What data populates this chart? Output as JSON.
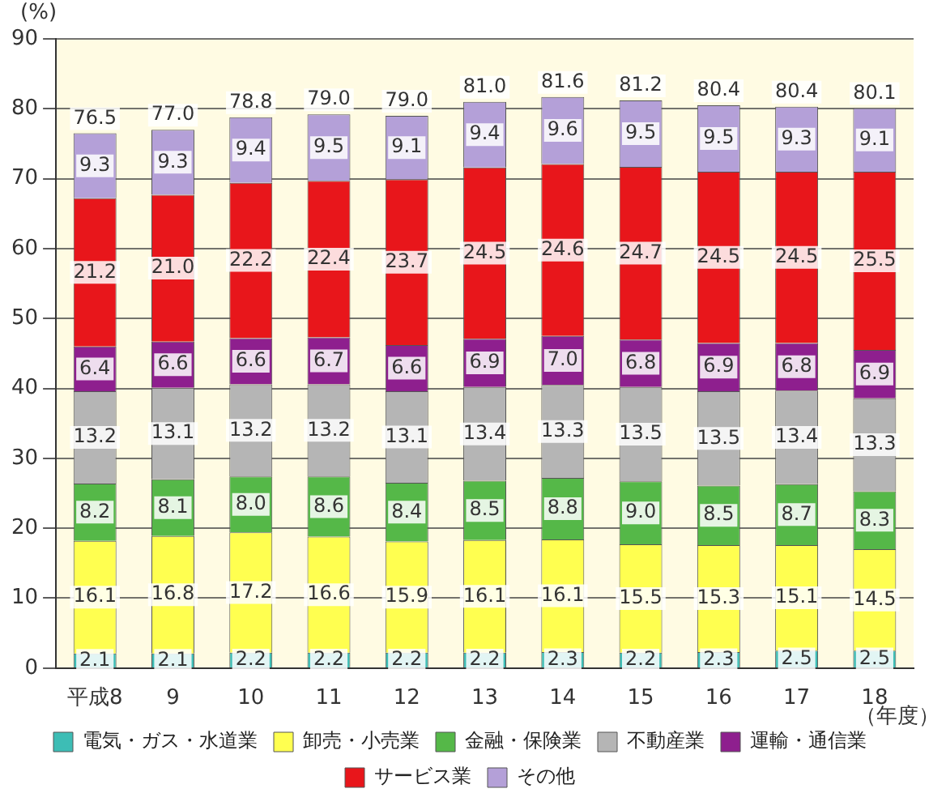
{
  "chart_data": {
    "type": "bar",
    "stacked": true,
    "xlabel": "（年度）",
    "ylabel": "(%)",
    "categories": [
      "平成8",
      "9",
      "10",
      "11",
      "12",
      "13",
      "14",
      "15",
      "16",
      "17",
      "18"
    ],
    "ylim": [
      0,
      90
    ],
    "yticks": [
      0,
      10,
      20,
      30,
      40,
      50,
      60,
      70,
      80,
      90
    ],
    "grid": "y",
    "legend": "bottom",
    "totals": [
      "76.5",
      "77.0",
      "78.8",
      "79.0",
      "79.0",
      "81.0",
      "81.6",
      "81.2",
      "80.4",
      "80.4",
      "80.1"
    ],
    "series": [
      {
        "name": "電気・ガス・水道業",
        "color": "#3dbdb5",
        "values": [
          2.1,
          2.1,
          2.2,
          2.2,
          2.2,
          2.2,
          2.3,
          2.2,
          2.3,
          2.5,
          2.5
        ],
        "value_labels": [
          "2.1",
          "2.1",
          "2.2",
          "2.2",
          "2.2",
          "2.2",
          "2.3",
          "2.2",
          "2.3",
          "2.5",
          "2.5"
        ]
      },
      {
        "name": "卸売・小売業",
        "color": "#ffff50",
        "values": [
          16.1,
          16.8,
          17.2,
          16.6,
          15.9,
          16.1,
          16.1,
          15.5,
          15.3,
          15.1,
          14.5
        ],
        "value_labels": [
          "16.1",
          "16.8",
          "17.2",
          "16.6",
          "15.9",
          "16.1",
          "16.1",
          "15.5",
          "15.3",
          "15.1",
          "14.5"
        ]
      },
      {
        "name": "金融・保険業",
        "color": "#55b848",
        "values": [
          8.2,
          8.1,
          8.0,
          8.6,
          8.4,
          8.5,
          8.8,
          9.0,
          8.5,
          8.7,
          8.3
        ],
        "value_labels": [
          "8.2",
          "8.1",
          "8.0",
          "8.6",
          "8.4",
          "8.5",
          "8.8",
          "9.0",
          "8.5",
          "8.7",
          "8.3"
        ]
      },
      {
        "name": "不動産業",
        "color": "#b5b5b5",
        "values": [
          13.2,
          13.1,
          13.2,
          13.2,
          13.1,
          13.4,
          13.3,
          13.5,
          13.5,
          13.4,
          13.3
        ],
        "value_labels": [
          "13.2",
          "13.1",
          "13.2",
          "13.2",
          "13.1",
          "13.4",
          "13.3",
          "13.5",
          "13.5",
          "13.4",
          "13.3"
        ]
      },
      {
        "name": "運輸・通信業",
        "color": "#8e1f8e",
        "values": [
          6.4,
          6.6,
          6.6,
          6.7,
          6.6,
          6.9,
          7.0,
          6.8,
          6.9,
          6.8,
          6.9
        ],
        "value_labels": [
          "6.4",
          "6.6",
          "6.6",
          "6.7",
          "6.6",
          "6.9",
          "7.0",
          "6.8",
          "6.9",
          "6.8",
          "6.9"
        ]
      },
      {
        "name": "サービス業",
        "color": "#e8161b",
        "values": [
          21.2,
          21.0,
          22.2,
          22.4,
          23.7,
          24.5,
          24.6,
          24.7,
          24.5,
          24.5,
          25.5
        ],
        "value_labels": [
          "21.2",
          "21.0",
          "22.2",
          "22.4",
          "23.7",
          "24.5",
          "24.6",
          "24.7",
          "24.5",
          "24.5",
          "25.5"
        ]
      },
      {
        "name": "その他",
        "color": "#b4a0d8",
        "values": [
          9.3,
          9.3,
          9.4,
          9.5,
          9.1,
          9.4,
          9.6,
          9.5,
          9.5,
          9.3,
          9.1
        ],
        "value_labels": [
          "9.3",
          "9.3",
          "9.4",
          "9.5",
          "9.1",
          "9.4",
          "9.6",
          "9.5",
          "9.5",
          "9.3",
          "9.1"
        ]
      }
    ]
  }
}
